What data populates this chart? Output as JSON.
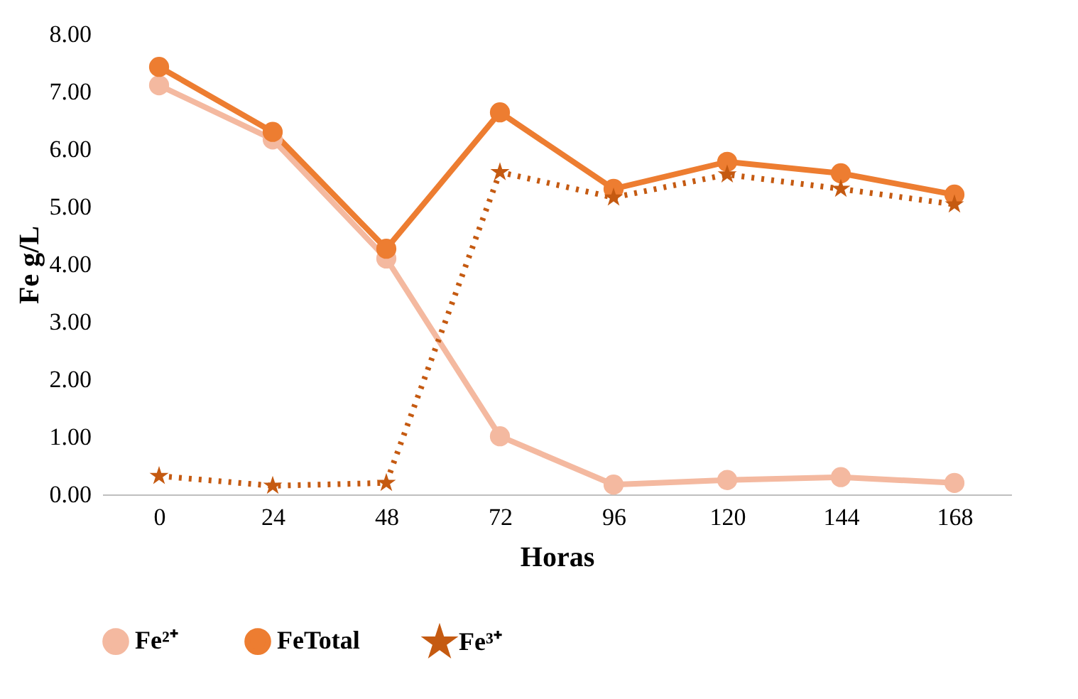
{
  "chart_data": {
    "type": "line",
    "xlabel": "Horas",
    "ylabel": "Fe g/L",
    "categories": [
      "0",
      "24",
      "48",
      "72",
      "96",
      "120",
      "144",
      "168"
    ],
    "ylim": [
      0,
      8
    ],
    "yticks": [
      {
        "value": 0,
        "label": "0.00"
      },
      {
        "value": 1,
        "label": "1.00"
      },
      {
        "value": 2,
        "label": "2.00"
      },
      {
        "value": 3,
        "label": "3.00"
      },
      {
        "value": 4,
        "label": "4.00"
      },
      {
        "value": 5,
        "label": "5.00"
      },
      {
        "value": 6,
        "label": "6.00"
      },
      {
        "value": 7,
        "label": "7.00"
      },
      {
        "value": 8,
        "label": "8.00"
      }
    ],
    "grid": false,
    "legend": "bottom",
    "series": [
      {
        "name": "Fe²⁺",
        "color": "#f4b9a0",
        "marker": "circle",
        "line_style": "solid",
        "values": [
          7.11,
          6.17,
          4.1,
          1.01,
          0.17,
          0.25,
          0.3,
          0.2
        ]
      },
      {
        "name": "FeTotal",
        "color": "#ed7d31",
        "marker": "circle",
        "line_style": "solid",
        "values": [
          7.43,
          6.3,
          4.27,
          6.64,
          5.31,
          5.78,
          5.58,
          5.21
        ]
      },
      {
        "name": "Fe³⁺",
        "color": "#c55a11",
        "marker": "star",
        "line_style": "dotted",
        "values": [
          0.32,
          0.15,
          0.2,
          5.6,
          5.16,
          5.56,
          5.31,
          5.04
        ]
      }
    ]
  }
}
